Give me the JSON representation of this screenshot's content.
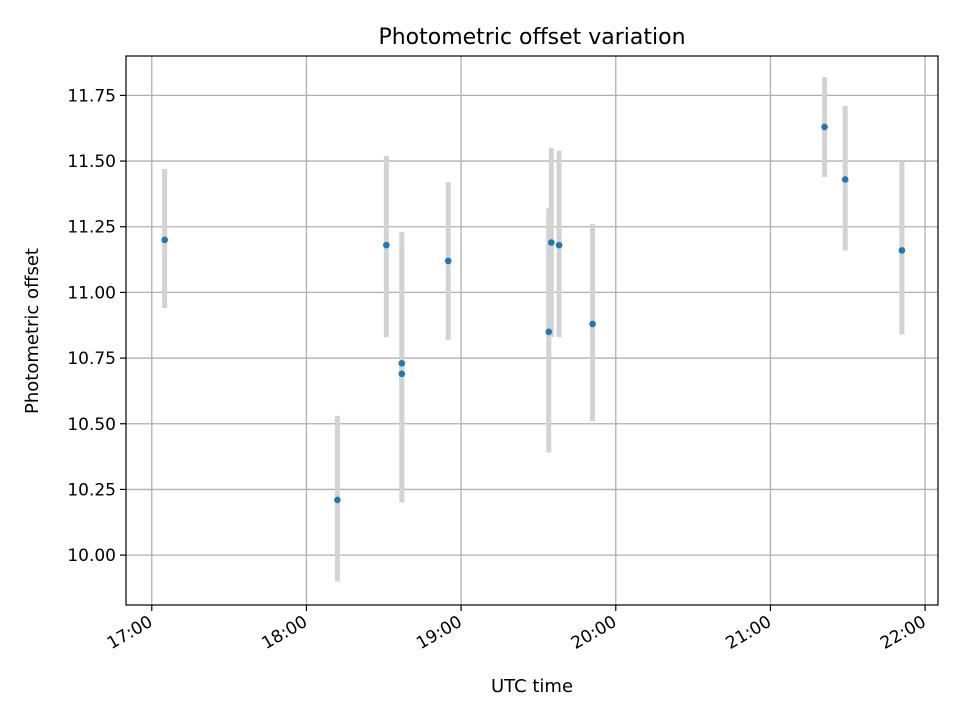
{
  "chart_data": {
    "type": "scatter",
    "title": "Photometric offset variation",
    "xlabel": "UTC time",
    "ylabel": "Photometric offset",
    "x_ticks": [
      "17:00",
      "18:00",
      "19:00",
      "20:00",
      "21:00",
      "22:00"
    ],
    "y_ticks": [
      "10.00",
      "10.25",
      "10.50",
      "10.75",
      "11.00",
      "11.25",
      "11.50",
      "11.75"
    ],
    "xlim": [
      "16:50",
      "22:05"
    ],
    "ylim": [
      9.81,
      11.9
    ],
    "grid": true,
    "marker_color": "#1f77b4",
    "errorbar_color": "#d3d3d3",
    "points": [
      {
        "x": "17:05",
        "y": 11.2,
        "yerr_low": 10.94,
        "yerr_high": 11.47
      },
      {
        "x": "18:12",
        "y": 10.21,
        "yerr_low": 9.9,
        "yerr_high": 10.53
      },
      {
        "x": "18:31",
        "y": 11.18,
        "yerr_low": 10.83,
        "yerr_high": 11.52
      },
      {
        "x": "18:37",
        "y": 10.73,
        "yerr_low": 10.24,
        "yerr_high": 11.23
      },
      {
        "x": "18:37",
        "y": 10.69,
        "yerr_low": 10.2,
        "yerr_high": 11.18
      },
      {
        "x": "18:55",
        "y": 11.12,
        "yerr_low": 10.82,
        "yerr_high": 11.42
      },
      {
        "x": "19:34",
        "y": 10.85,
        "yerr_low": 10.39,
        "yerr_high": 11.32
      },
      {
        "x": "19:35",
        "y": 11.19,
        "yerr_low": 10.83,
        "yerr_high": 11.55
      },
      {
        "x": "19:38",
        "y": 11.18,
        "yerr_low": 10.83,
        "yerr_high": 11.54
      },
      {
        "x": "19:51",
        "y": 10.88,
        "yerr_low": 10.51,
        "yerr_high": 11.26
      },
      {
        "x": "21:21",
        "y": 11.63,
        "yerr_low": 11.44,
        "yerr_high": 11.82
      },
      {
        "x": "21:29",
        "y": 11.43,
        "yerr_low": 11.16,
        "yerr_high": 11.71
      },
      {
        "x": "21:51",
        "y": 11.16,
        "yerr_low": 10.84,
        "yerr_high": 11.5
      }
    ]
  }
}
